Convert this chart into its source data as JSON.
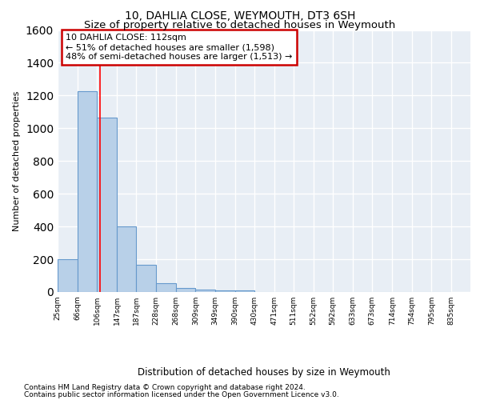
{
  "title": "10, DAHLIA CLOSE, WEYMOUTH, DT3 6SH",
  "subtitle": "Size of property relative to detached houses in Weymouth",
  "xlabel": "Distribution of detached houses by size in Weymouth",
  "ylabel": "Number of detached properties",
  "bin_edges": [
    25,
    66,
    106,
    147,
    187,
    228,
    268,
    309,
    349,
    390,
    430,
    471,
    511,
    552,
    592,
    633,
    673,
    714,
    754,
    795,
    835
  ],
  "bar_heights": [
    200,
    1225,
    1065,
    400,
    165,
    55,
    25,
    15,
    10,
    10,
    0,
    0,
    0,
    0,
    0,
    0,
    0,
    0,
    0,
    0
  ],
  "bar_color": "#b8d0e8",
  "bar_edge_color": "#6699cc",
  "background_color": "#e8eef5",
  "grid_color": "#ffffff",
  "red_line_x": 112,
  "ylim": [
    0,
    1600
  ],
  "annotation_line1": "10 DAHLIA CLOSE: 112sqm",
  "annotation_line2": "← 51% of detached houses are smaller (1,598)",
  "annotation_line3": "48% of semi-detached houses are larger (1,513) →",
  "annotation_box_color": "#cc0000",
  "footer_line1": "Contains HM Land Registry data © Crown copyright and database right 2024.",
  "footer_line2": "Contains public sector information licensed under the Open Government Licence v3.0.",
  "title_fontsize": 10,
  "subtitle_fontsize": 9.5,
  "tick_labels": [
    "25sqm",
    "66sqm",
    "106sqm",
    "147sqm",
    "187sqm",
    "228sqm",
    "268sqm",
    "309sqm",
    "349sqm",
    "390sqm",
    "430sqm",
    "471sqm",
    "511sqm",
    "552sqm",
    "592sqm",
    "633sqm",
    "673sqm",
    "714sqm",
    "754sqm",
    "795sqm",
    "835sqm"
  ]
}
